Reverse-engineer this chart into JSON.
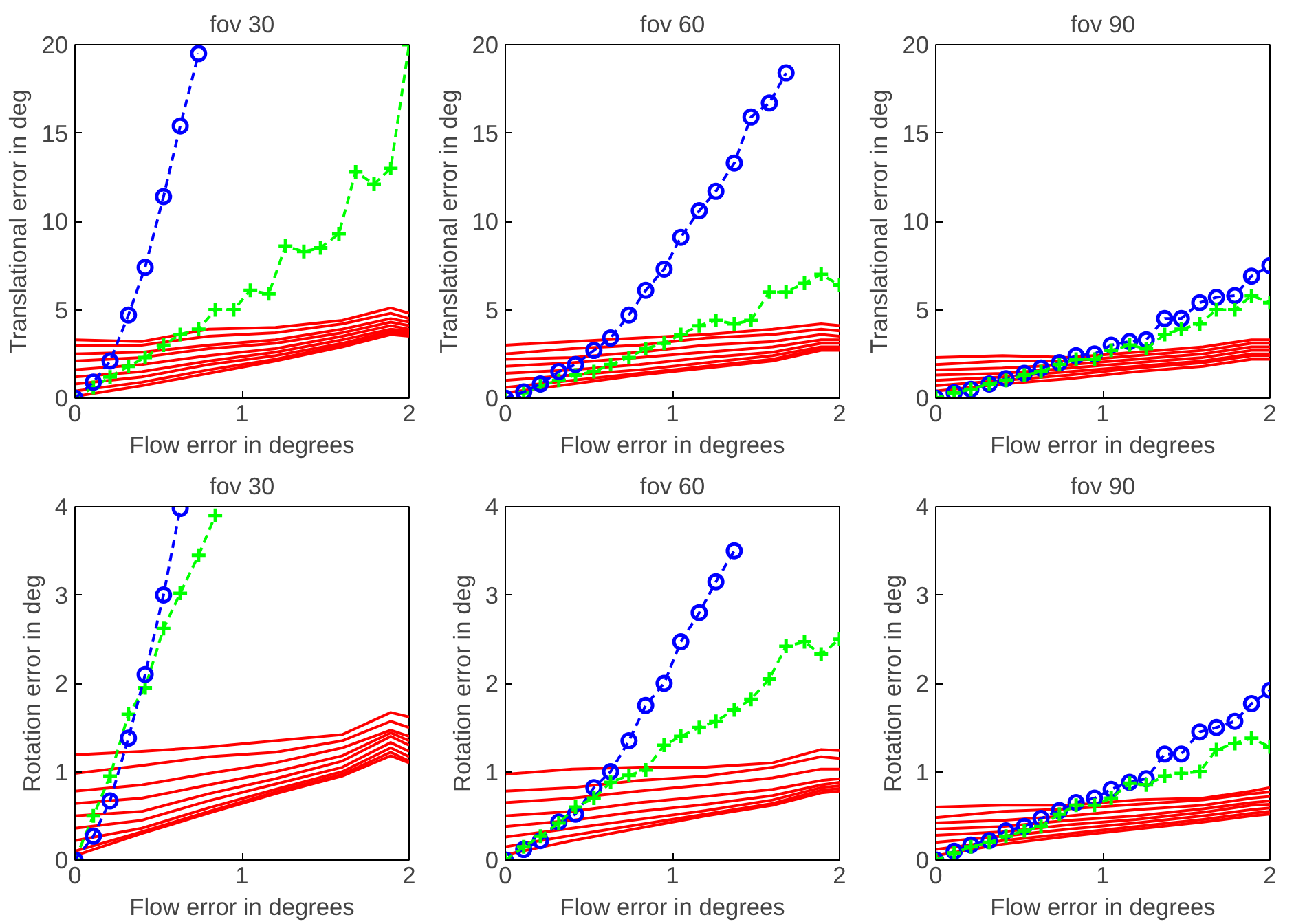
{
  "chart_data": [
    {
      "type": "line",
      "title": "fov 30",
      "xlabel": "Flow error in degrees",
      "ylabel": "Translational error in deg",
      "xlim": [
        0,
        2
      ],
      "xticks": [
        0,
        1,
        2
      ],
      "ylim": [
        0,
        20
      ],
      "yticks": [
        0,
        5,
        10,
        15,
        20
      ],
      "x": [
        0,
        0.11,
        0.21,
        0.32,
        0.42,
        0.53,
        0.63,
        0.74,
        0.84,
        0.95,
        1.05,
        1.16,
        1.26,
        1.37,
        1.47,
        1.58,
        1.68,
        1.79,
        1.89,
        2.0
      ],
      "series": [
        {
          "color": "#ff0000",
          "marker": "none",
          "line_style": "solid",
          "x": [
            0,
            0.4,
            0.8,
            1.2,
            1.6,
            1.89,
            2.0
          ],
          "values": [
            3.3,
            3.2,
            3.9,
            4.0,
            4.4,
            5.1,
            4.8
          ]
        },
        {
          "color": "#ff0000",
          "marker": "none",
          "line_style": "solid",
          "x": [
            0,
            0.4,
            0.8,
            1.2,
            1.6,
            1.89,
            2.0
          ],
          "values": [
            3.0,
            3.0,
            3.5,
            3.7,
            4.2,
            4.8,
            4.5
          ]
        },
        {
          "color": "#ff0000",
          "marker": "none",
          "line_style": "solid",
          "x": [
            0,
            0.4,
            0.8,
            1.2,
            1.6,
            1.89,
            2.0
          ],
          "values": [
            2.5,
            2.6,
            3.0,
            3.3,
            3.9,
            4.5,
            4.3
          ]
        },
        {
          "color": "#ff0000",
          "marker": "none",
          "line_style": "solid",
          "x": [
            0,
            0.4,
            0.8,
            1.2,
            1.6,
            1.89,
            2.0
          ],
          "values": [
            2.1,
            2.3,
            2.8,
            3.1,
            3.7,
            4.3,
            4.1
          ]
        },
        {
          "color": "#ff0000",
          "marker": "none",
          "line_style": "solid",
          "x": [
            0,
            0.4,
            0.8,
            1.2,
            1.6,
            1.89,
            2.0
          ],
          "values": [
            1.6,
            1.9,
            2.4,
            2.8,
            3.5,
            4.1,
            3.9
          ]
        },
        {
          "color": "#ff0000",
          "marker": "none",
          "line_style": "solid",
          "x": [
            0,
            0.4,
            0.8,
            1.2,
            1.6,
            1.89,
            2.0
          ],
          "values": [
            1.2,
            1.5,
            2.1,
            2.6,
            3.3,
            3.9,
            3.8
          ]
        },
        {
          "color": "#ff0000",
          "marker": "none",
          "line_style": "solid",
          "x": [
            0,
            0.4,
            0.8,
            1.2,
            1.6,
            1.89,
            2.0
          ],
          "values": [
            0.8,
            1.2,
            1.9,
            2.4,
            3.1,
            3.8,
            3.7
          ]
        },
        {
          "color": "#ff0000",
          "marker": "none",
          "line_style": "solid",
          "x": [
            0,
            0.4,
            0.8,
            1.2,
            1.6,
            1.89,
            2.0
          ],
          "values": [
            0.4,
            0.9,
            1.6,
            2.2,
            3.0,
            3.7,
            3.6
          ]
        },
        {
          "color": "#ff0000",
          "marker": "none",
          "line_style": "solid",
          "x": [
            0,
            0.4,
            0.8,
            1.2,
            1.6,
            1.89,
            2.0
          ],
          "values": [
            0.1,
            0.7,
            1.4,
            2.1,
            2.9,
            3.6,
            3.5
          ]
        },
        {
          "color": "#00ff00",
          "marker": "cross",
          "line_style": "dashed",
          "values": [
            0,
            0.6,
            1.2,
            1.8,
            2.3,
            3.0,
            3.6,
            3.9,
            5.0,
            5.0,
            6.1,
            5.9,
            8.6,
            8.3,
            8.5,
            9.3,
            12.8,
            12.1,
            13.0,
            20
          ]
        },
        {
          "color": "#0000ff",
          "marker": "circle",
          "line_style": "dashed",
          "values": [
            0,
            0.9,
            2.1,
            4.7,
            7.4,
            11.4,
            15.4,
            19.5,
            null,
            null,
            null,
            null,
            null,
            null,
            null,
            null,
            null,
            null,
            null,
            null
          ]
        }
      ]
    },
    {
      "type": "line",
      "title": "fov 60",
      "xlabel": "Flow error in degrees",
      "ylabel": "Translational error in deg",
      "xlim": [
        0,
        2
      ],
      "xticks": [
        0,
        1,
        2
      ],
      "ylim": [
        0,
        20
      ],
      "yticks": [
        0,
        5,
        10,
        15,
        20
      ],
      "x": [
        0,
        0.11,
        0.21,
        0.32,
        0.42,
        0.53,
        0.63,
        0.74,
        0.84,
        0.95,
        1.05,
        1.16,
        1.26,
        1.37,
        1.47,
        1.58,
        1.68,
        1.79,
        1.89,
        2.0
      ],
      "series": [
        {
          "color": "#ff0000",
          "marker": "none",
          "line_style": "solid",
          "x": [
            0,
            0.4,
            0.8,
            1.2,
            1.6,
            1.89,
            2.0
          ],
          "values": [
            3.0,
            3.2,
            3.4,
            3.6,
            3.9,
            4.2,
            4.1
          ]
        },
        {
          "color": "#ff0000",
          "marker": "none",
          "line_style": "solid",
          "x": [
            0,
            0.4,
            0.8,
            1.2,
            1.6,
            1.89,
            2.0
          ],
          "values": [
            2.5,
            2.8,
            3.0,
            3.4,
            3.6,
            3.9,
            3.8
          ]
        },
        {
          "color": "#ff0000",
          "marker": "none",
          "line_style": "solid",
          "x": [
            0,
            0.4,
            0.8,
            1.2,
            1.6,
            1.89,
            2.0
          ],
          "values": [
            2.2,
            2.3,
            2.6,
            3.0,
            3.2,
            3.6,
            3.5
          ]
        },
        {
          "color": "#ff0000",
          "marker": "none",
          "line_style": "solid",
          "x": [
            0,
            0.4,
            0.8,
            1.2,
            1.6,
            1.89,
            2.0
          ],
          "values": [
            1.8,
            2.0,
            2.3,
            2.6,
            2.9,
            3.3,
            3.3
          ]
        },
        {
          "color": "#ff0000",
          "marker": "none",
          "line_style": "solid",
          "x": [
            0,
            0.4,
            0.8,
            1.2,
            1.6,
            1.89,
            2.0
          ],
          "values": [
            1.4,
            1.6,
            1.9,
            2.3,
            2.6,
            3.1,
            3.1
          ]
        },
        {
          "color": "#ff0000",
          "marker": "none",
          "line_style": "solid",
          "x": [
            0,
            0.4,
            0.8,
            1.2,
            1.6,
            1.89,
            2.0
          ],
          "values": [
            1.0,
            1.3,
            1.6,
            2.0,
            2.4,
            2.9,
            2.9
          ]
        },
        {
          "color": "#ff0000",
          "marker": "none",
          "line_style": "solid",
          "x": [
            0,
            0.4,
            0.8,
            1.2,
            1.6,
            1.89,
            2.0
          ],
          "values": [
            0.6,
            1.0,
            1.4,
            1.8,
            2.2,
            2.8,
            2.8
          ]
        },
        {
          "color": "#ff0000",
          "marker": "none",
          "line_style": "solid",
          "x": [
            0,
            0.4,
            0.8,
            1.2,
            1.6,
            1.89,
            2.0
          ],
          "values": [
            0.3,
            0.8,
            1.3,
            1.7,
            2.1,
            2.7,
            2.7
          ]
        },
        {
          "color": "#00ff00",
          "marker": "cross",
          "line_style": "dashed",
          "values": [
            0,
            0.3,
            0.7,
            1.0,
            1.3,
            1.5,
            1.9,
            2.3,
            2.8,
            3.1,
            3.6,
            4.1,
            4.4,
            4.2,
            4.4,
            6.0,
            6.0,
            6.5,
            7.0,
            6.4
          ]
        },
        {
          "color": "#0000ff",
          "marker": "circle",
          "line_style": "dashed",
          "values": [
            0,
            0.35,
            0.8,
            1.5,
            1.9,
            2.7,
            3.4,
            4.7,
            6.1,
            7.3,
            9.1,
            10.6,
            11.7,
            13.3,
            15.9,
            16.7,
            18.4,
            null,
            null,
            null
          ]
        }
      ]
    },
    {
      "type": "line",
      "title": "fov 90",
      "xlabel": "Flow error in degrees",
      "ylabel": "Translational error in deg",
      "xlim": [
        0,
        2
      ],
      "xticks": [
        0,
        1,
        2
      ],
      "ylim": [
        0,
        20
      ],
      "yticks": [
        0,
        5,
        10,
        15,
        20
      ],
      "x": [
        0,
        0.11,
        0.21,
        0.32,
        0.42,
        0.53,
        0.63,
        0.74,
        0.84,
        0.95,
        1.05,
        1.16,
        1.26,
        1.37,
        1.47,
        1.58,
        1.68,
        1.79,
        1.89,
        2.0
      ],
      "series": [
        {
          "color": "#ff0000",
          "marker": "none",
          "line_style": "solid",
          "x": [
            0,
            0.4,
            0.8,
            1.2,
            1.6,
            1.89,
            2.0
          ],
          "values": [
            2.3,
            2.4,
            2.3,
            2.6,
            2.9,
            3.3,
            3.3
          ]
        },
        {
          "color": "#ff0000",
          "marker": "none",
          "line_style": "solid",
          "x": [
            0,
            0.4,
            0.8,
            1.2,
            1.6,
            1.89,
            2.0
          ],
          "values": [
            1.9,
            2.1,
            2.1,
            2.4,
            2.7,
            3.1,
            3.1
          ]
        },
        {
          "color": "#ff0000",
          "marker": "none",
          "line_style": "solid",
          "x": [
            0,
            0.4,
            0.8,
            1.2,
            1.6,
            1.89,
            2.0
          ],
          "values": [
            1.6,
            1.7,
            1.9,
            2.2,
            2.5,
            2.9,
            2.9
          ]
        },
        {
          "color": "#ff0000",
          "marker": "none",
          "line_style": "solid",
          "x": [
            0,
            0.4,
            0.8,
            1.2,
            1.6,
            1.89,
            2.0
          ],
          "values": [
            1.3,
            1.4,
            1.7,
            2.0,
            2.3,
            2.7,
            2.7
          ]
        },
        {
          "color": "#ff0000",
          "marker": "none",
          "line_style": "solid",
          "x": [
            0,
            0.4,
            0.8,
            1.2,
            1.6,
            1.89,
            2.0
          ],
          "values": [
            1.0,
            1.2,
            1.5,
            1.8,
            2.1,
            2.5,
            2.5
          ]
        },
        {
          "color": "#ff0000",
          "marker": "none",
          "line_style": "solid",
          "x": [
            0,
            0.4,
            0.8,
            1.2,
            1.6,
            1.89,
            2.0
          ],
          "values": [
            0.7,
            1.0,
            1.3,
            1.7,
            2.0,
            2.4,
            2.4
          ]
        },
        {
          "color": "#ff0000",
          "marker": "none",
          "line_style": "solid",
          "x": [
            0,
            0.4,
            0.8,
            1.2,
            1.6,
            1.89,
            2.0
          ],
          "values": [
            0.4,
            0.8,
            1.1,
            1.5,
            1.8,
            2.2,
            2.2
          ]
        },
        {
          "color": "#0000ff",
          "marker": "circle",
          "line_style": "dashed",
          "values": [
            0,
            0.3,
            0.5,
            0.8,
            1.1,
            1.4,
            1.7,
            2.0,
            2.4,
            2.5,
            3.0,
            3.2,
            3.3,
            4.5,
            4.5,
            5.4,
            5.7,
            5.8,
            6.9,
            7.5
          ]
        },
        {
          "color": "#00ff00",
          "marker": "cross",
          "line_style": "dashed",
          "values": [
            0,
            0.3,
            0.5,
            0.8,
            1.0,
            1.3,
            1.5,
            1.9,
            2.2,
            2.2,
            2.7,
            3.0,
            2.8,
            3.6,
            3.9,
            4.2,
            5.0,
            5.0,
            5.8,
            5.4
          ]
        }
      ]
    },
    {
      "type": "line",
      "title": "fov 30",
      "xlabel": "Flow error in degrees",
      "ylabel": "Rotation error in deg",
      "xlim": [
        0,
        2
      ],
      "xticks": [
        0,
        1,
        2
      ],
      "ylim": [
        0,
        4
      ],
      "yticks": [
        0,
        1,
        2,
        3,
        4
      ],
      "series": [
        {
          "color": "#ff0000",
          "marker": "none",
          "line_style": "solid",
          "x": [
            0,
            0.4,
            0.8,
            1.2,
            1.6,
            1.89,
            2.0
          ],
          "values": [
            1.19,
            1.23,
            1.28,
            1.35,
            1.42,
            1.67,
            1.62
          ]
        },
        {
          "color": "#ff0000",
          "marker": "none",
          "line_style": "solid",
          "x": [
            0,
            0.4,
            0.8,
            1.2,
            1.6,
            1.89,
            2.0
          ],
          "values": [
            0.98,
            1.07,
            1.17,
            1.22,
            1.35,
            1.57,
            1.5
          ]
        },
        {
          "color": "#ff0000",
          "marker": "none",
          "line_style": "solid",
          "x": [
            0,
            0.4,
            0.8,
            1.2,
            1.6,
            1.89,
            2.0
          ],
          "values": [
            0.78,
            0.85,
            0.98,
            1.1,
            1.27,
            1.47,
            1.4
          ]
        },
        {
          "color": "#ff0000",
          "marker": "none",
          "line_style": "solid",
          "x": [
            0,
            0.4,
            0.8,
            1.2,
            1.6,
            1.89,
            2.0
          ],
          "values": [
            0.64,
            0.7,
            0.85,
            1.0,
            1.18,
            1.44,
            1.35
          ]
        },
        {
          "color": "#ff0000",
          "marker": "none",
          "line_style": "solid",
          "x": [
            0,
            0.4,
            0.8,
            1.2,
            1.6,
            1.89,
            2.0
          ],
          "values": [
            0.5,
            0.55,
            0.75,
            0.92,
            1.12,
            1.4,
            1.3
          ]
        },
        {
          "color": "#ff0000",
          "marker": "none",
          "line_style": "solid",
          "x": [
            0,
            0.4,
            0.8,
            1.2,
            1.6,
            1.89,
            2.0
          ],
          "values": [
            0.36,
            0.45,
            0.67,
            0.86,
            1.05,
            1.33,
            1.23
          ]
        },
        {
          "color": "#ff0000",
          "marker": "none",
          "line_style": "solid",
          "x": [
            0,
            0.4,
            0.8,
            1.2,
            1.6,
            1.89,
            2.0
          ],
          "values": [
            0.22,
            0.36,
            0.59,
            0.8,
            1.0,
            1.27,
            1.17
          ]
        },
        {
          "color": "#ff0000",
          "marker": "none",
          "line_style": "solid",
          "x": [
            0,
            0.4,
            0.8,
            1.2,
            1.6,
            1.89,
            2.0
          ],
          "values": [
            0.1,
            0.32,
            0.55,
            0.77,
            0.97,
            1.22,
            1.12
          ]
        },
        {
          "color": "#ff0000",
          "marker": "none",
          "line_style": "solid",
          "x": [
            0,
            0.4,
            0.8,
            1.2,
            1.6,
            1.89,
            2.0
          ],
          "values": [
            0.05,
            0.3,
            0.53,
            0.75,
            0.95,
            1.18,
            1.1
          ]
        },
        {
          "color": "#00ff00",
          "marker": "cross",
          "line_style": "dashed",
          "x": [
            0,
            0.11,
            0.21,
            0.32,
            0.42,
            0.53,
            0.63,
            0.74,
            0.84
          ],
          "values": [
            0,
            0.5,
            0.95,
            1.65,
            1.95,
            2.62,
            3.02,
            3.45,
            3.9
          ]
        },
        {
          "color": "#0000ff",
          "marker": "circle",
          "line_style": "dashed",
          "x": [
            0,
            0.11,
            0.21,
            0.32,
            0.42,
            0.53,
            0.63
          ],
          "values": [
            0,
            0.27,
            0.67,
            1.38,
            2.1,
            3.0,
            3.98
          ]
        }
      ]
    },
    {
      "type": "line",
      "title": "fov 60",
      "xlabel": "Flow error in degrees",
      "ylabel": "Rotation error in deg",
      "xlim": [
        0,
        2
      ],
      "xticks": [
        0,
        1,
        2
      ],
      "ylim": [
        0,
        4
      ],
      "yticks": [
        0,
        1,
        2,
        3,
        4
      ],
      "x": [
        0,
        0.11,
        0.21,
        0.32,
        0.42,
        0.53,
        0.63,
        0.74,
        0.84,
        0.95,
        1.05,
        1.16,
        1.26,
        1.37,
        1.47,
        1.58,
        1.68,
        1.79,
        1.89,
        2.0
      ],
      "series": [
        {
          "color": "#ff0000",
          "marker": "none",
          "line_style": "solid",
          "x": [
            0,
            0.4,
            0.8,
            1.2,
            1.6,
            1.89,
            2.0
          ],
          "values": [
            0.97,
            1.03,
            1.05,
            1.05,
            1.1,
            1.25,
            1.24
          ]
        },
        {
          "color": "#ff0000",
          "marker": "none",
          "line_style": "solid",
          "x": [
            0,
            0.4,
            0.8,
            1.2,
            1.6,
            1.89,
            2.0
          ],
          "values": [
            0.78,
            0.82,
            0.9,
            0.95,
            1.05,
            1.17,
            1.15
          ]
        },
        {
          "color": "#ff0000",
          "marker": "none",
          "line_style": "solid",
          "x": [
            0,
            0.4,
            0.8,
            1.2,
            1.6,
            1.89,
            2.0
          ],
          "values": [
            0.65,
            0.7,
            0.78,
            0.85,
            0.93,
            1.03,
            1.03
          ]
        },
        {
          "color": "#ff0000",
          "marker": "none",
          "line_style": "solid",
          "x": [
            0,
            0.4,
            0.8,
            1.2,
            1.6,
            1.89,
            2.0
          ],
          "values": [
            0.5,
            0.55,
            0.65,
            0.72,
            0.8,
            0.9,
            0.92
          ]
        },
        {
          "color": "#ff0000",
          "marker": "none",
          "line_style": "solid",
          "x": [
            0,
            0.4,
            0.8,
            1.2,
            1.6,
            1.89,
            2.0
          ],
          "values": [
            0.38,
            0.45,
            0.55,
            0.63,
            0.73,
            0.85,
            0.88
          ]
        },
        {
          "color": "#ff0000",
          "marker": "none",
          "line_style": "solid",
          "x": [
            0,
            0.4,
            0.8,
            1.2,
            1.6,
            1.89,
            2.0
          ],
          "values": [
            0.26,
            0.36,
            0.46,
            0.56,
            0.68,
            0.82,
            0.84
          ]
        },
        {
          "color": "#ff0000",
          "marker": "none",
          "line_style": "solid",
          "x": [
            0,
            0.4,
            0.8,
            1.2,
            1.6,
            1.89,
            2.0
          ],
          "values": [
            0.15,
            0.28,
            0.4,
            0.52,
            0.64,
            0.79,
            0.81
          ]
        },
        {
          "color": "#ff0000",
          "marker": "none",
          "line_style": "solid",
          "x": [
            0,
            0.4,
            0.8,
            1.2,
            1.6,
            1.89,
            2.0
          ],
          "values": [
            0.06,
            0.22,
            0.36,
            0.5,
            0.62,
            0.76,
            0.78
          ]
        },
        {
          "color": "#0000ff",
          "marker": "circle",
          "line_style": "dashed",
          "values": [
            0,
            0.12,
            0.22,
            0.43,
            0.52,
            0.82,
            1.0,
            1.35,
            1.75,
            2.0,
            2.47,
            2.8,
            3.15,
            3.5,
            null,
            null,
            null,
            null,
            null,
            null
          ]
        },
        {
          "color": "#00ff00",
          "marker": "cross",
          "line_style": "dashed",
          "values": [
            0,
            0.15,
            0.27,
            0.42,
            0.6,
            0.7,
            0.88,
            0.96,
            1.02,
            1.3,
            1.4,
            1.5,
            1.57,
            1.7,
            1.82,
            2.05,
            2.42,
            2.47,
            2.33,
            2.5
          ]
        }
      ]
    },
    {
      "type": "line",
      "title": "fov 90",
      "xlabel": "Flow error in degrees",
      "ylabel": "Rotation error in deg",
      "xlim": [
        0,
        2
      ],
      "xticks": [
        0,
        1,
        2
      ],
      "ylim": [
        0,
        4
      ],
      "yticks": [
        0,
        1,
        2,
        3,
        4
      ],
      "x": [
        0,
        0.11,
        0.21,
        0.32,
        0.42,
        0.53,
        0.63,
        0.74,
        0.84,
        0.95,
        1.05,
        1.16,
        1.26,
        1.37,
        1.47,
        1.58,
        1.68,
        1.79,
        1.89,
        2.0
      ],
      "series": [
        {
          "color": "#ff0000",
          "marker": "none",
          "line_style": "solid",
          "x": [
            0,
            0.4,
            0.8,
            1.2,
            1.6,
            1.89,
            2.0
          ],
          "values": [
            0.6,
            0.62,
            0.62,
            0.68,
            0.7,
            0.78,
            0.82
          ]
        },
        {
          "color": "#ff0000",
          "marker": "none",
          "line_style": "solid",
          "x": [
            0,
            0.4,
            0.8,
            1.2,
            1.6,
            1.89,
            2.0
          ],
          "values": [
            0.48,
            0.55,
            0.58,
            0.63,
            0.68,
            0.75,
            0.77
          ]
        },
        {
          "color": "#ff0000",
          "marker": "none",
          "line_style": "solid",
          "x": [
            0,
            0.4,
            0.8,
            1.2,
            1.6,
            1.89,
            2.0
          ],
          "values": [
            0.42,
            0.45,
            0.5,
            0.57,
            0.62,
            0.7,
            0.72
          ]
        },
        {
          "color": "#ff0000",
          "marker": "none",
          "line_style": "solid",
          "x": [
            0,
            0.4,
            0.8,
            1.2,
            1.6,
            1.89,
            2.0
          ],
          "values": [
            0.35,
            0.38,
            0.45,
            0.5,
            0.58,
            0.65,
            0.67
          ]
        },
        {
          "color": "#ff0000",
          "marker": "none",
          "line_style": "solid",
          "x": [
            0,
            0.4,
            0.8,
            1.2,
            1.6,
            1.89,
            2.0
          ],
          "values": [
            0.28,
            0.32,
            0.4,
            0.46,
            0.54,
            0.62,
            0.63
          ]
        },
        {
          "color": "#ff0000",
          "marker": "none",
          "line_style": "solid",
          "x": [
            0,
            0.4,
            0.8,
            1.2,
            1.6,
            1.89,
            2.0
          ],
          "values": [
            0.2,
            0.27,
            0.35,
            0.42,
            0.5,
            0.57,
            0.59
          ]
        },
        {
          "color": "#ff0000",
          "marker": "none",
          "line_style": "solid",
          "x": [
            0,
            0.4,
            0.8,
            1.2,
            1.6,
            1.89,
            2.0
          ],
          "values": [
            0.12,
            0.22,
            0.3,
            0.38,
            0.46,
            0.53,
            0.55
          ]
        },
        {
          "color": "#ff0000",
          "marker": "none",
          "line_style": "solid",
          "x": [
            0,
            0.4,
            0.8,
            1.2,
            1.6,
            1.89,
            2.0
          ],
          "values": [
            0.05,
            0.18,
            0.27,
            0.35,
            0.43,
            0.5,
            0.52
          ]
        },
        {
          "color": "#0000ff",
          "marker": "circle",
          "line_style": "dashed",
          "values": [
            0,
            0.1,
            0.17,
            0.22,
            0.33,
            0.38,
            0.47,
            0.56,
            0.65,
            0.7,
            0.8,
            0.88,
            0.92,
            1.2,
            1.2,
            1.45,
            1.5,
            1.57,
            1.77,
            1.92
          ]
        },
        {
          "color": "#00ff00",
          "marker": "cross",
          "line_style": "dashed",
          "values": [
            0,
            0.08,
            0.15,
            0.2,
            0.27,
            0.33,
            0.38,
            0.52,
            0.62,
            0.62,
            0.7,
            0.87,
            0.85,
            0.95,
            0.98,
            1.0,
            1.25,
            1.32,
            1.38,
            1.28
          ]
        }
      ]
    }
  ]
}
